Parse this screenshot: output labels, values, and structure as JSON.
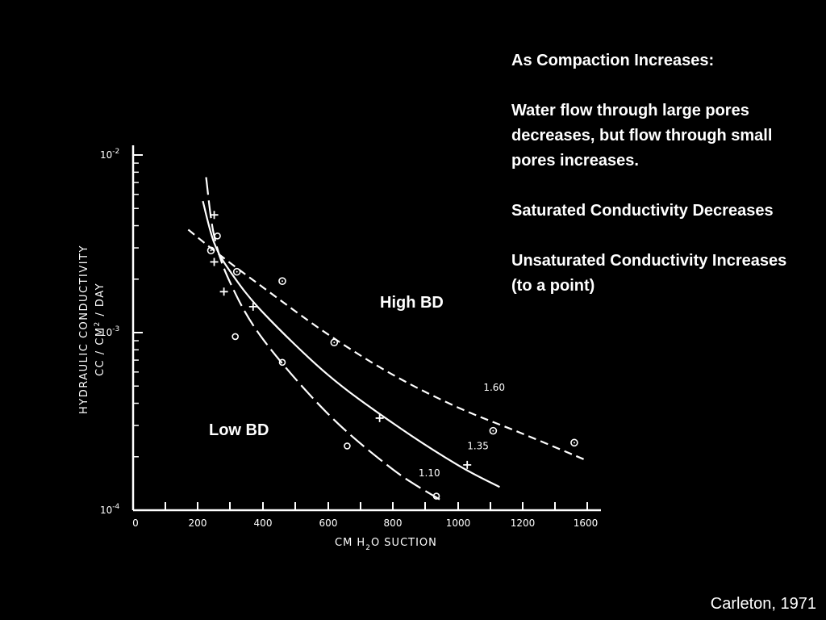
{
  "slide": {
    "heading": "As Compaction Increases:",
    "para1": "Water flow through large pores decreases, but flow through small pores increases.",
    "para2": "Saturated Conductivity Decreases",
    "para3": "Unsaturated Conductivity Increases (to a point)",
    "high_label": "High BD",
    "low_label": "Low BD",
    "credit": "Carleton, 1971"
  },
  "chart_data": {
    "type": "line",
    "ylabel_line1": "HYDRAULIC CONDUCTIVITY",
    "ylabel_line2": "CC / CM",
    "ylabel_sup": "2",
    "ylabel_line2b": "/ DAY",
    "xlabel_pre": "CM H",
    "xlabel_sub": "2",
    "xlabel_post": "O SUCTION",
    "x_ticks": [
      "0",
      "200",
      "400",
      "600",
      "800",
      "1000",
      "1200",
      "1600"
    ],
    "y_ticks": [
      {
        "base": "10",
        "exp": "-2"
      },
      {
        "base": "10",
        "exp": "-3"
      },
      {
        "base": "10",
        "exp": "-4"
      }
    ],
    "xlim": [
      0,
      1400
    ],
    "ylog": true,
    "ylim": [
      0.0001,
      0.01
    ],
    "series": [
      {
        "name": "1.60",
        "style": "short-dash",
        "x": [
          170,
          260,
          400,
          600,
          800,
          1000,
          1200,
          1400
        ],
        "y": [
          0.0038,
          0.0028,
          0.0018,
          0.00098,
          0.00058,
          0.00038,
          0.00027,
          0.00019
        ],
        "points": [
          [
            240,
            0.0029
          ],
          [
            320,
            0.0022
          ],
          [
            460,
            0.00195
          ],
          [
            620,
            0.00088
          ],
          [
            1110,
            0.00028
          ],
          [
            1360,
            0.00024
          ]
        ],
        "marker": "circle-dot"
      },
      {
        "name": "1.35",
        "style": "solid",
        "x": [
          215,
          250,
          300,
          400,
          600,
          800,
          1000,
          1130
        ],
        "y": [
          0.0055,
          0.0032,
          0.0022,
          0.0013,
          0.00058,
          0.00031,
          0.00018,
          0.000135
        ],
        "points": [
          [
            250,
            0.0046
          ],
          [
            250,
            0.0025
          ],
          [
            280,
            0.0017
          ],
          [
            370,
            0.0014
          ],
          [
            760,
            0.00033
          ],
          [
            1030,
            0.00018
          ]
        ],
        "marker": "plus"
      },
      {
        "name": "1.10",
        "style": "long-dash",
        "x": [
          225,
          250,
          300,
          400,
          600,
          800,
          945
        ],
        "y": [
          0.0075,
          0.0035,
          0.0019,
          0.00092,
          0.00035,
          0.00017,
          0.000115
        ],
        "points": [
          [
            260,
            0.0035
          ],
          [
            315,
            0.00095
          ],
          [
            460,
            0.00068
          ],
          [
            660,
            0.00023
          ],
          [
            935,
            0.00012
          ]
        ],
        "marker": "circle"
      }
    ]
  }
}
